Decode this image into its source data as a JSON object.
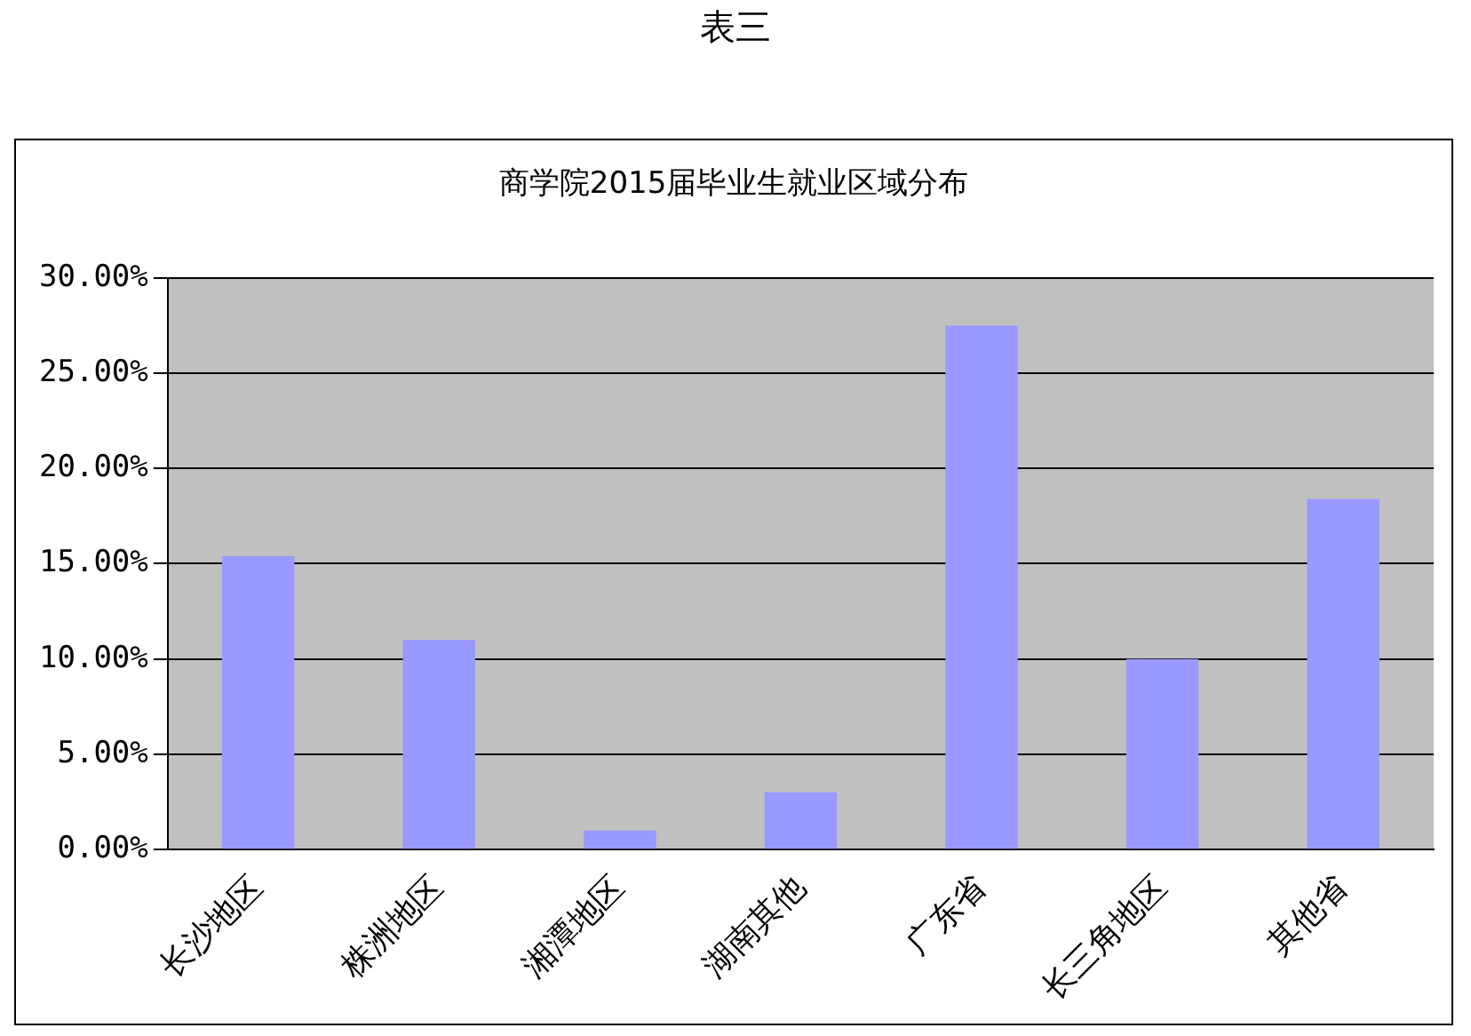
{
  "chart_data": {
    "type": "bar",
    "title": "商学院2015届毕业生就业区域分布",
    "annotations": [
      "表三"
    ],
    "categories": [
      "长沙地区",
      "株洲地区",
      "湘潭地区",
      "湖南其他",
      "广东省",
      "长三角地区",
      "其他省"
    ],
    "values": [
      15.4,
      11.0,
      1.0,
      3.0,
      27.5,
      10.0,
      18.4
    ],
    "color": "#9999ff",
    "ylim": [
      0,
      30
    ],
    "yticks": [
      {
        "value": 0,
        "label": "0.00%"
      },
      {
        "value": 5,
        "label": "5.00%"
      },
      {
        "value": 10,
        "label": "10.00%"
      },
      {
        "value": 15,
        "label": "15.00%"
      },
      {
        "value": 20,
        "label": "20.00%"
      },
      {
        "value": 25,
        "label": "25.00%"
      },
      {
        "value": 30,
        "label": "30.00%"
      }
    ],
    "grid": "y",
    "legend": false
  }
}
